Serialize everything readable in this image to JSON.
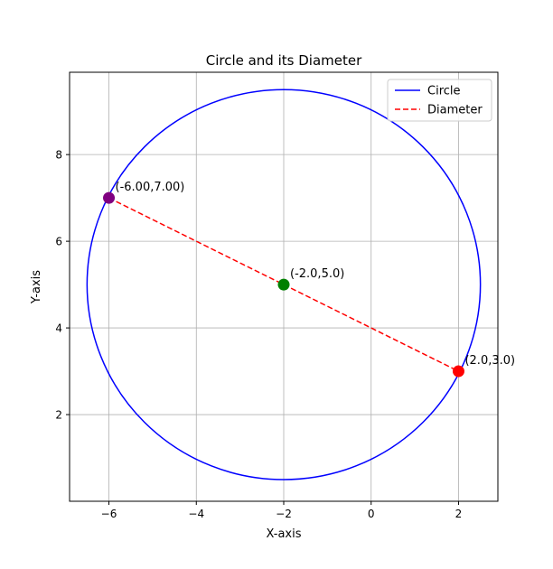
{
  "chart_data": {
    "type": "line",
    "title": "Circle and its Diameter",
    "xlabel": "X-axis",
    "ylabel": "Y-axis",
    "xlim": [
      -6.9,
      2.9
    ],
    "ylim": [
      0.0,
      9.9
    ],
    "xticks": [
      -6,
      -4,
      -2,
      0,
      2
    ],
    "xtick_labels": [
      "−6",
      "−4",
      "−2",
      "0",
      "2"
    ],
    "yticks": [
      2,
      4,
      6,
      8
    ],
    "ytick_labels": [
      "2",
      "4",
      "6",
      "8"
    ],
    "grid": true,
    "legend_position": "top-right",
    "series": [
      {
        "name": "Circle",
        "kind": "circle",
        "center": [
          -2.0,
          5.0
        ],
        "radius": 4.5,
        "color": "#0000ff",
        "style": "solid"
      },
      {
        "name": "Diameter",
        "kind": "segment",
        "x": [
          -6.0,
          2.0
        ],
        "y": [
          7.0,
          3.0
        ],
        "color": "#ff0000",
        "style": "dashed"
      }
    ],
    "points": [
      {
        "x": -6.0,
        "y": 7.0,
        "color": "#800080",
        "label": "(-6.00,7.00)"
      },
      {
        "x": -2.0,
        "y": 5.0,
        "color": "#008000",
        "label": "(-2.0,5.0)"
      },
      {
        "x": 2.0,
        "y": 3.0,
        "color": "#ff0000",
        "label": "(2.0,3.0)"
      }
    ]
  }
}
